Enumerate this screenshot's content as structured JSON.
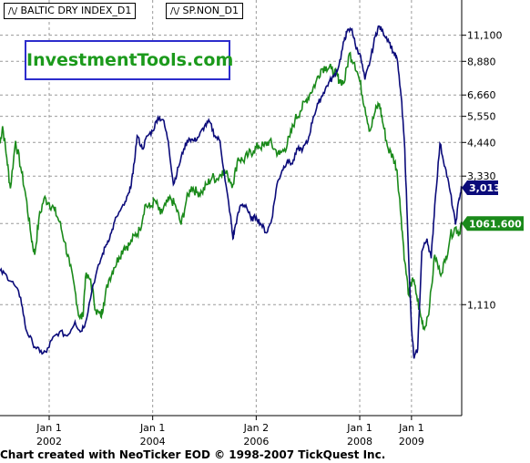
{
  "legend": {
    "series1": "BALTIC DRY INDEX_D1",
    "series2": "SP.NON_D1",
    "symbol": "/\\/"
  },
  "brand_label": "InvestmentTools.com",
  "footer": "Chart created with NeoTicker EOD © 1998-2007 TickQuest Inc.",
  "colors": {
    "baltic": "#0b0b7a",
    "spnon": "#1a8a1a",
    "grid": "#9a9a9a",
    "baltic_tag_bg": "#0b0b7a",
    "spnon_tag_bg": "#1a8a1a"
  },
  "chart_data": {
    "type": "line",
    "y_scale": "log",
    "ylim": [
      430,
      15000
    ],
    "y_ticks": [
      1110,
      2220,
      3330,
      4440,
      5550,
      6660,
      8880,
      11100
    ],
    "y_tick_labels": [
      "1,110",
      "",
      "3,330",
      "4,440",
      "5,550",
      "6,660",
      "8,880",
      "11,100"
    ],
    "x_ticks": [
      {
        "x": 2002.0,
        "line1": "Jan 1",
        "line2": "2002"
      },
      {
        "x": 2004.0,
        "line1": "Jan 1",
        "line2": "2004"
      },
      {
        "x": 2006.0,
        "line1": "Jan 2",
        "line2": "2006"
      },
      {
        "x": 2008.0,
        "line1": "Jan 1",
        "line2": "2008"
      },
      {
        "x": 2009.0,
        "line1": "Jan 1",
        "line2": "2009"
      }
    ],
    "xlim": [
      2001.05,
      2009.97
    ],
    "last_value_tags": [
      {
        "series": "BALTIC DRY INDEX_D1",
        "label": "3,013",
        "value": 3013
      },
      {
        "series": "SP.NON_D1",
        "label": "1061.600",
        "value": 2220
      }
    ],
    "series": [
      {
        "name": "BALTIC DRY INDEX_D1",
        "x": [
          2001.05,
          2001.18,
          2001.32,
          2001.45,
          2001.55,
          2001.68,
          2001.82,
          2001.95,
          2002.05,
          2002.2,
          2002.35,
          2002.5,
          2002.6,
          2002.7,
          2002.85,
          2003.0,
          2003.1,
          2003.2,
          2003.3,
          2003.45,
          2003.55,
          2003.62,
          2003.7,
          2003.8,
          2003.9,
          2004.0,
          2004.1,
          2004.2,
          2004.3,
          2004.4,
          2004.5,
          2004.6,
          2004.7,
          2004.8,
          2004.9,
          2005.0,
          2005.1,
          2005.2,
          2005.3,
          2005.4,
          2005.5,
          2005.55,
          2005.6,
          2005.7,
          2005.8,
          2005.9,
          2006.0,
          2006.1,
          2006.2,
          2006.3,
          2006.4,
          2006.5,
          2006.6,
          2006.7,
          2006.8,
          2006.9,
          2007.0,
          2007.1,
          2007.2,
          2007.3,
          2007.4,
          2007.5,
          2007.6,
          2007.7,
          2007.75,
          2007.85,
          2007.92,
          2008.0,
          2008.1,
          2008.2,
          2008.3,
          2008.37,
          2008.45,
          2008.55,
          2008.65,
          2008.72,
          2008.8,
          2008.87,
          2008.93,
          2009.0,
          2009.05,
          2009.12,
          2009.2,
          2009.3,
          2009.38,
          2009.45,
          2009.55,
          2009.65,
          2009.75,
          2009.85,
          2009.92,
          2009.97
        ],
        "values": [
          1480,
          1420,
          1320,
          1180,
          900,
          800,
          740,
          740,
          820,
          880,
          850,
          960,
          880,
          950,
          1320,
          1640,
          1850,
          2050,
          2350,
          2600,
          2900,
          3400,
          4700,
          4200,
          4700,
          4900,
          5500,
          5400,
          4500,
          3100,
          3600,
          4200,
          4600,
          4500,
          4700,
          5100,
          5300,
          4700,
          4500,
          3200,
          2400,
          1950,
          2200,
          2600,
          2600,
          2300,
          2350,
          2200,
          2050,
          2300,
          3100,
          3500,
          3800,
          3700,
          4200,
          4200,
          4500,
          5500,
          6200,
          6800,
          7400,
          7800,
          8600,
          10600,
          11400,
          11700,
          10100,
          9500,
          7600,
          8900,
          11000,
          12000,
          11400,
          10700,
          9600,
          9100,
          6600,
          4200,
          2000,
          900,
          700,
          760,
          1750,
          1950,
          1650,
          2600,
          4400,
          3600,
          2900,
          2200,
          2750,
          3013
        ]
      },
      {
        "name": "SP.NON_D1",
        "x": [
          2001.05,
          2001.1,
          2001.18,
          2001.25,
          2001.35,
          2001.45,
          2001.55,
          2001.65,
          2001.72,
          2001.8,
          2001.9,
          2002.0,
          2002.1,
          2002.2,
          2002.3,
          2002.4,
          2002.5,
          2002.58,
          2002.65,
          2002.7,
          2002.8,
          2002.9,
          2003.0,
          2003.05,
          2003.15,
          2003.25,
          2003.35,
          2003.45,
          2003.55,
          2003.65,
          2003.75,
          2003.85,
          2003.95,
          2004.05,
          2004.15,
          2004.25,
          2004.35,
          2004.45,
          2004.55,
          2004.65,
          2004.75,
          2004.85,
          2004.95,
          2005.05,
          2005.15,
          2005.25,
          2005.35,
          2005.45,
          2005.55,
          2005.65,
          2005.75,
          2005.85,
          2005.95,
          2006.05,
          2006.15,
          2006.25,
          2006.35,
          2006.45,
          2006.55,
          2006.65,
          2006.75,
          2006.85,
          2006.95,
          2007.05,
          2007.15,
          2007.25,
          2007.35,
          2007.45,
          2007.55,
          2007.6,
          2007.7,
          2007.8,
          2007.9,
          2008.0,
          2008.1,
          2008.2,
          2008.3,
          2008.38,
          2008.45,
          2008.55,
          2008.65,
          2008.72,
          2008.8,
          2008.87,
          2008.95,
          2009.02,
          2009.1,
          2009.18,
          2009.25,
          2009.35,
          2009.45,
          2009.55,
          2009.65,
          2009.75,
          2009.85,
          2009.92,
          2009.97
        ],
        "values": [
          4400,
          5100,
          3900,
          3000,
          4500,
          3600,
          2800,
          2000,
          1700,
          2300,
          2750,
          2650,
          2500,
          2250,
          1900,
          1550,
          1250,
          1000,
          1000,
          1400,
          1380,
          1060,
          1000,
          1120,
          1370,
          1520,
          1670,
          1820,
          1850,
          2000,
          2100,
          2600,
          2550,
          2700,
          2400,
          2600,
          2750,
          2550,
          2200,
          2700,
          3050,
          2900,
          2900,
          3100,
          3300,
          3250,
          3500,
          3350,
          3100,
          3900,
          3800,
          4000,
          4150,
          4300,
          4300,
          4500,
          4200,
          4000,
          4200,
          4650,
          5400,
          5800,
          6300,
          6800,
          7400,
          8300,
          8500,
          8300,
          7900,
          7600,
          7400,
          9500,
          8800,
          7500,
          6000,
          4900,
          5800,
          6200,
          5200,
          4200,
          3900,
          3500,
          2350,
          1600,
          1200,
          1400,
          1200,
          1000,
          900,
          1100,
          1700,
          1450,
          1600,
          2000,
          2150,
          2050,
          2220
        ]
      }
    ]
  }
}
